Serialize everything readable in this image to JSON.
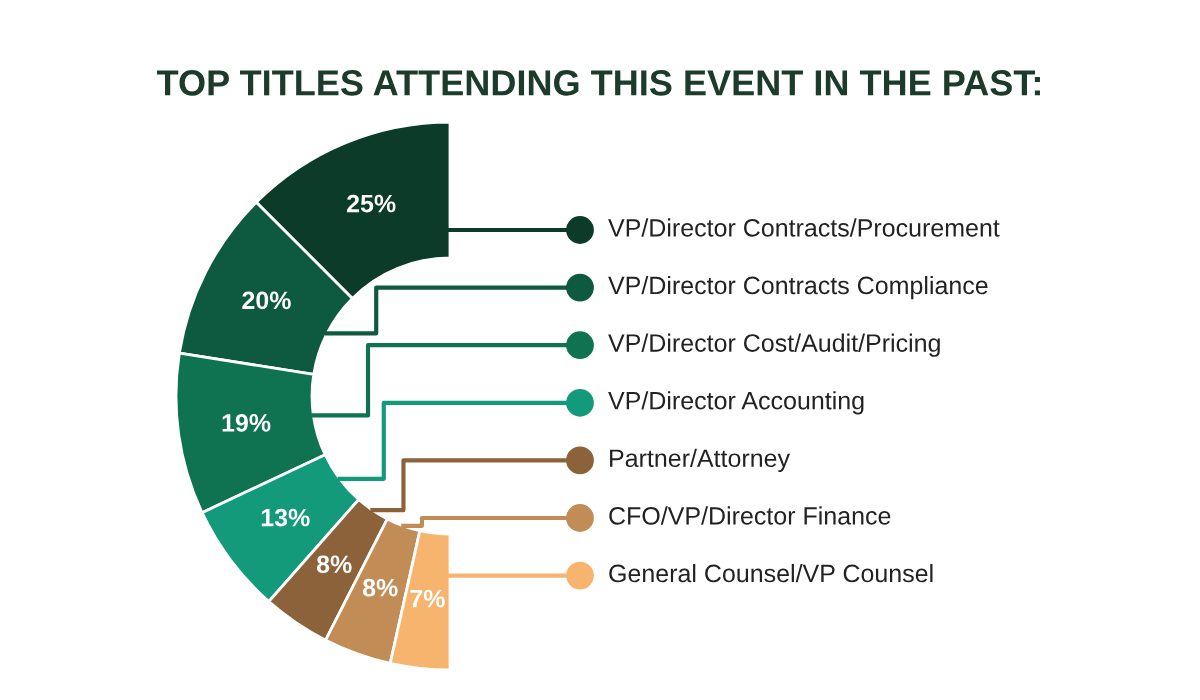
{
  "chart_data": {
    "type": "donut",
    "title": "TOP TITLES ATTENDING THIS EVENT IN THE PAST:",
    "categories": [
      "VP/Director Contracts/Procurement",
      "VP/Director Contracts Compliance",
      "VP/Director Cost/Audit/Pricing",
      "VP/Director Accounting",
      "Partner/Attorney",
      "CFO/VP/Director Finance",
      "General Counsel/VP Counsel"
    ],
    "values": [
      25,
      20,
      19,
      13,
      8,
      8,
      7
    ],
    "value_labels": [
      "25%",
      "20%",
      "19%",
      "13%",
      "8%",
      "8%",
      "7%"
    ],
    "colors": [
      "#0c3b29",
      "#0e5a40",
      "#0f7352",
      "#139a7a",
      "#8c623b",
      "#c28c57",
      "#f7b46e"
    ],
    "legend": "right"
  }
}
